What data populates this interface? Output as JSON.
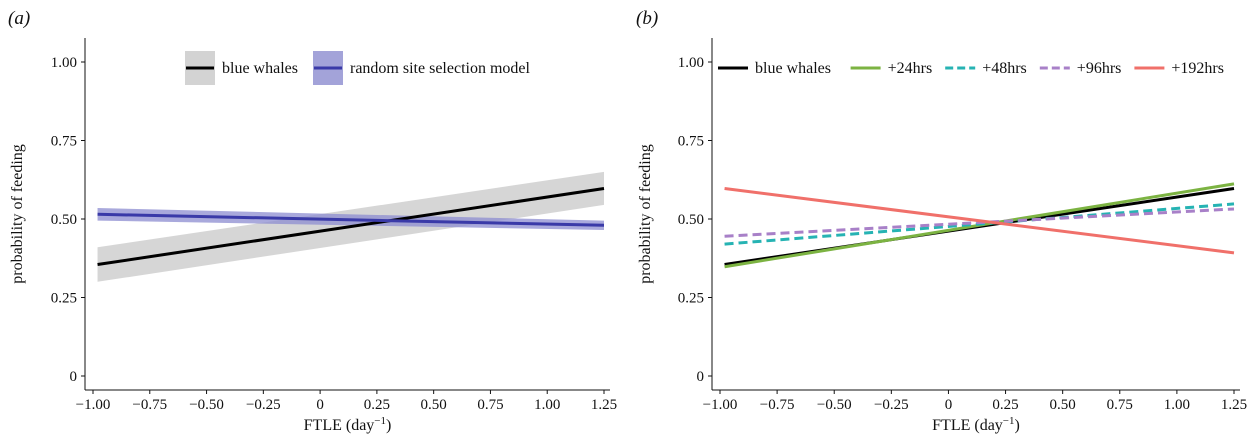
{
  "chart_data": [
    {
      "type": "line",
      "panel_label": "(a)",
      "xlabel": "FTLE (day",
      "xlabel_sup": "−1",
      "xlabel_suffix": ")",
      "ylabel": "probability of feeding",
      "xlim": [
        -1.0,
        1.25
      ],
      "ylim": [
        0,
        1.0
      ],
      "x_ticks": [
        -1.0,
        -0.75,
        -0.5,
        -0.25,
        0,
        0.25,
        0.5,
        0.75,
        1.0,
        1.25
      ],
      "x_tick_labels": [
        "−1.00",
        "−0.75",
        "−0.50",
        "−0.25",
        "0",
        "0.25",
        "0.50",
        "0.75",
        "1.00",
        "1.25"
      ],
      "y_ticks": [
        0,
        0.25,
        0.5,
        0.75,
        1.0
      ],
      "y_tick_labels": [
        "0",
        "0.25",
        "0.50",
        "0.75",
        "1.00"
      ],
      "grid": false,
      "legend_position": "top",
      "series": [
        {
          "name": "blue whales",
          "x": [
            -0.98,
            1.25
          ],
          "y": [
            0.355,
            0.597
          ],
          "lower": [
            0.3,
            0.545
          ],
          "upper": [
            0.41,
            0.65
          ],
          "color": "#000000",
          "band_color": "#c8c8c8",
          "dash": false
        },
        {
          "name": "random site selection model",
          "x": [
            -0.98,
            1.25
          ],
          "y": [
            0.515,
            0.48
          ],
          "lower": [
            0.495,
            0.465
          ],
          "upper": [
            0.535,
            0.495
          ],
          "color": "#3a3aa8",
          "band_color": "#8c8cd0",
          "dash": false
        }
      ]
    },
    {
      "type": "line",
      "panel_label": "(b)",
      "xlabel": "FTLE (day",
      "xlabel_sup": "−1",
      "xlabel_suffix": ")",
      "ylabel": "probability of feeding",
      "xlim": [
        -1.0,
        1.25
      ],
      "ylim": [
        0,
        1.0
      ],
      "x_ticks": [
        -1.0,
        -0.75,
        -0.5,
        -0.25,
        0,
        0.25,
        0.5,
        0.75,
        1.0,
        1.25
      ],
      "x_tick_labels": [
        "−1.00",
        "−0.75",
        "−0.50",
        "−0.25",
        "0",
        "0.25",
        "0.50",
        "0.75",
        "1.00",
        "1.25"
      ],
      "y_ticks": [
        0,
        0.25,
        0.5,
        0.75,
        1.0
      ],
      "y_tick_labels": [
        "0",
        "0.25",
        "0.50",
        "0.75",
        "1.00"
      ],
      "grid": false,
      "legend_position": "top",
      "series": [
        {
          "name": "blue whales",
          "x": [
            -0.98,
            1.25
          ],
          "y": [
            0.355,
            0.597
          ],
          "color": "#000000",
          "dash": false
        },
        {
          "name": "+24hrs",
          "x": [
            -0.98,
            1.25
          ],
          "y": [
            0.348,
            0.612
          ],
          "color": "#7cb342",
          "dash": false
        },
        {
          "name": "+48hrs",
          "x": [
            -0.98,
            1.25
          ],
          "y": [
            0.42,
            0.548
          ],
          "color": "#26b3b3",
          "dash": true
        },
        {
          "name": "+96hrs",
          "x": [
            -0.98,
            1.25
          ],
          "y": [
            0.445,
            0.532
          ],
          "color": "#a880c8",
          "dash": true
        },
        {
          "name": "+192hrs",
          "x": [
            -0.98,
            1.25
          ],
          "y": [
            0.597,
            0.392
          ],
          "color": "#f0706a",
          "dash": false
        }
      ]
    }
  ]
}
